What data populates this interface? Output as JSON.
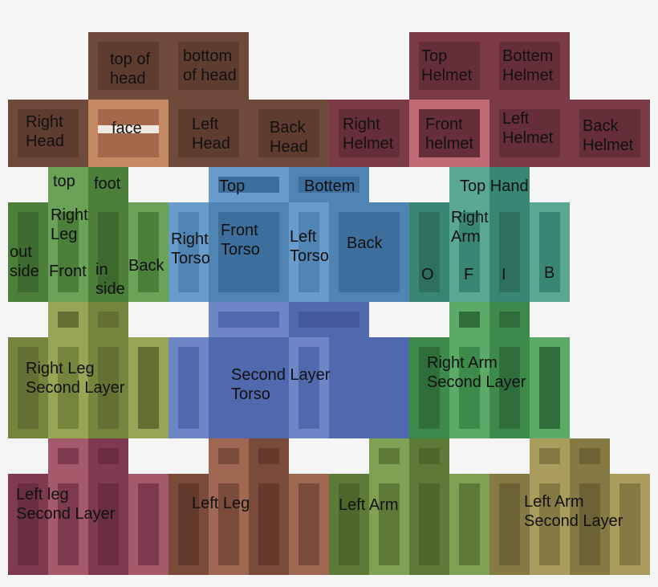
{
  "labels": {
    "top_of_head": "top of\nhead",
    "bottom_of_head": "bottom\nof head",
    "top_helmet": "Top\nHelmet",
    "bottom_helmet": "Bottem\nHelmet",
    "right_head": "Right\nHead",
    "face": "face",
    "left_head": "Left\nHead",
    "back_head": "Back\nHead",
    "right_helmet": "Right\nHelmet",
    "front_helmet": "Front\nhelmet",
    "left_helmet": "Left\nHelmet",
    "back_helmet": "Back\nHelmet",
    "leg_top": "top",
    "leg_foot": "foot",
    "torso_top": "Top",
    "torso_bottom": "Bottem",
    "arm_top_hand": "Top Hand",
    "right_leg": "Right\nLeg",
    "leg_outside": "out\nside",
    "leg_front": "Front",
    "leg_inside": "in\nside",
    "leg_back": "Back",
    "right_torso": "Right\nTorso",
    "front_torso": "Front\nTorso",
    "left_torso": "Left\nTorso",
    "torso_back": "Back",
    "right_arm": "Right\nArm",
    "arm_o": "O",
    "arm_f": "F",
    "arm_i": "I",
    "arm_b": "B",
    "right_leg_second": "Right Leg\nSecond Layer",
    "second_layer_torso": "Second Layer\nTorso",
    "right_arm_second": "Right Arm\nSecond Layer",
    "left_leg_second": "Left leg\nSecond Layer",
    "left_leg": "Left Leg",
    "left_arm": "Left Arm",
    "left_arm_second": "Left Arm\nSecond Layer"
  },
  "colors": {
    "head": "#6f4a3a",
    "head_inner": "#5e3c2e",
    "face": "#c58a64",
    "face_inner": "#a26a4a",
    "helmet": "#7a3a46",
    "helmet_inner": "#662e38",
    "helmet_front": "#c06a74",
    "leg": "#4b7f3a",
    "leg_inner": "#3d6a2e",
    "leg_light": "#6aa257",
    "torso": "#4f84b3",
    "torso_light": "#6a9ccb",
    "torso_inner": "#3e6f9c",
    "arm": "#3a8675",
    "arm_light": "#5aa894",
    "arm_inner": "#2e7060",
    "leg2": "#76853e",
    "leg2_light": "#98a556",
    "leg2_inner": "#646f34",
    "torso2": "#5068ae",
    "torso2_light": "#6f86c6",
    "torso2_inner": "#425a99",
    "arm2": "#3d8a4a",
    "arm2_light": "#5caa68",
    "arm2_inner": "#2f6e3a",
    "lleg2": "#7e3a4e",
    "lleg2_light": "#a55a6c",
    "lleg2_inner": "#6a2e40",
    "lleg": "#7a4a3a",
    "lleg_light": "#a06852",
    "lleg_inner": "#633a2c",
    "larm": "#5e7a38",
    "larm_light": "#80a054",
    "larm_inner": "#4c662c",
    "larm2": "#857a44",
    "larm2_light": "#a99c5c",
    "larm2_inner": "#6c6236"
  }
}
